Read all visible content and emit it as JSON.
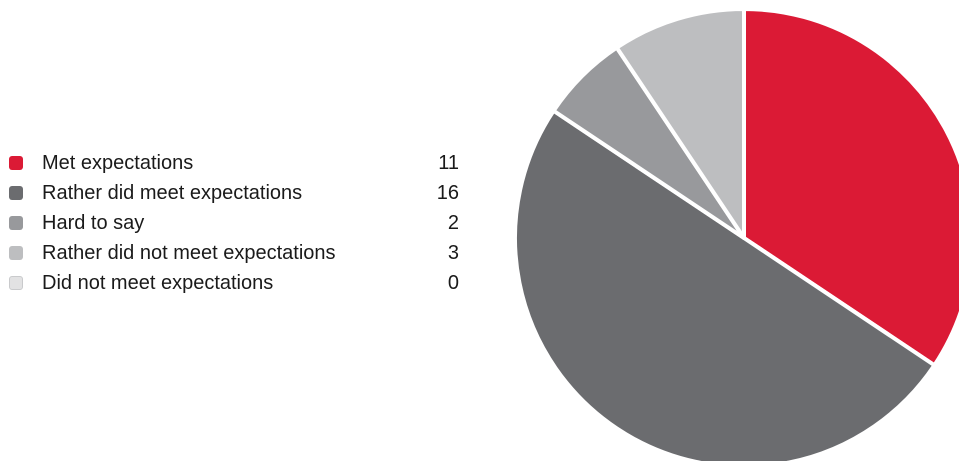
{
  "chart_data": {
    "type": "pie",
    "categories": [
      "Met expectations",
      "Rather did meet expectations",
      "Hard to say",
      "Rather did not meet expectations",
      "Did not meet expectations"
    ],
    "values": [
      11,
      16,
      2,
      3,
      0
    ],
    "colors": [
      "#db1a35",
      "#6b6c6f",
      "#98999c",
      "#bdbec0",
      "#e2e2e3"
    ],
    "start_angle_deg": 0,
    "direction": "clockwise",
    "legend_position": "left"
  }
}
